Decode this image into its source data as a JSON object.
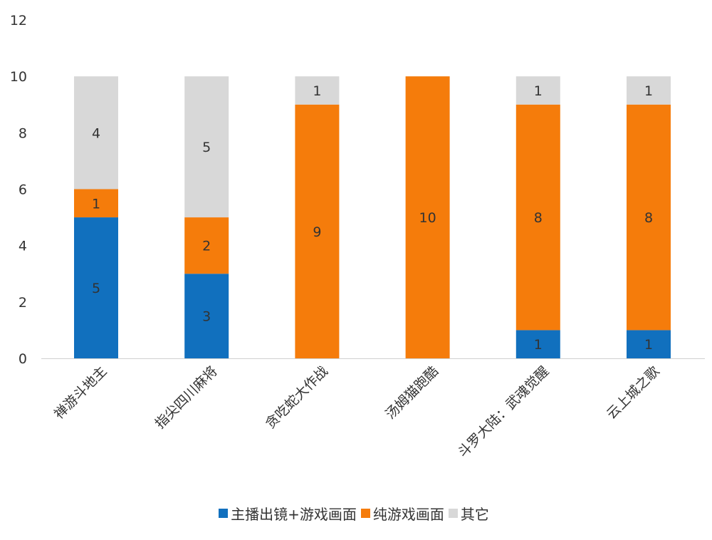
{
  "chart_data": {
    "type": "bar",
    "stacked": true,
    "categories": [
      "禅游斗地主",
      "指尖四川麻将",
      "贪吃蛇大作战",
      "汤姆猫跑酷",
      "斗罗大陆：武魂觉醒",
      "云上城之歌"
    ],
    "series": [
      {
        "name": "主播出镜+游戏画面",
        "color": "#1170BE",
        "values": [
          5,
          3,
          0,
          0,
          1,
          1
        ]
      },
      {
        "name": "纯游戏画面",
        "color": "#F57C0B",
        "values": [
          1,
          2,
          9,
          10,
          8,
          8
        ]
      },
      {
        "name": "其它",
        "color": "#D8D8D8",
        "values": [
          4,
          5,
          1,
          0,
          1,
          1
        ]
      }
    ],
    "yticks": [
      "0",
      "2",
      "4",
      "6",
      "8",
      "10",
      "12"
    ],
    "ylim": [
      0,
      12
    ],
    "grid": false,
    "legend": "bottom",
    "title": "",
    "xlabel": "",
    "ylabel": ""
  }
}
